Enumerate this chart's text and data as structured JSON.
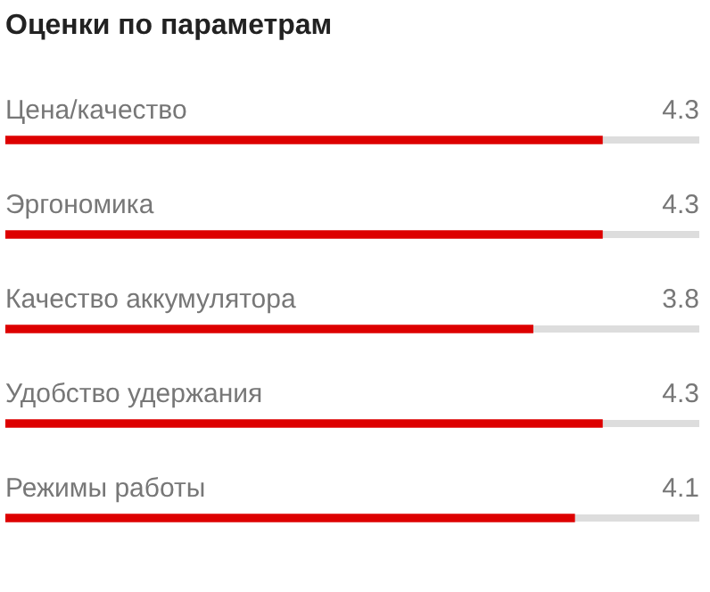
{
  "chart_data": {
    "type": "bar",
    "orientation": "horizontal",
    "title": "Оценки по параметрам",
    "categories": [
      "Цена/качество",
      "Эргономика",
      "Качество аккумулятора",
      "Удобство удержания",
      "Режимы работы"
    ],
    "values": [
      4.3,
      4.3,
      3.8,
      4.3,
      4.1
    ],
    "color": "#dd0000",
    "xlim": [
      0,
      5
    ],
    "tick_labels": false,
    "grid": false,
    "legend": false,
    "data_labels": true
  }
}
